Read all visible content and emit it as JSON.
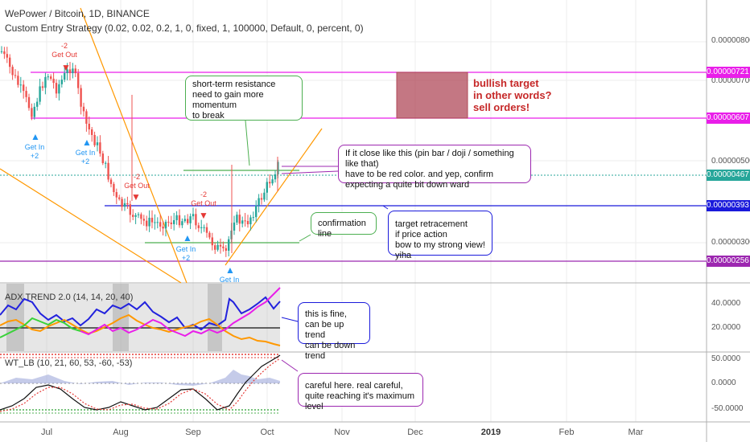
{
  "header": {
    "title": "WePower / Bitcoin, 1D, BINANCE",
    "strategy": "Custom Entry Strategy (0.02, 0.02, 0.2, 1, 0, fixed, 1, 100000, Default, 0, percent, 0)"
  },
  "price_axis": {
    "ticks": [
      "0.00000800",
      "0.00000700",
      "0.00000500",
      "0.00000300"
    ],
    "labels": [
      {
        "text": "0.00000721",
        "color": "#e91ee9"
      },
      {
        "text": "0.00000607",
        "color": "#e91ee9"
      },
      {
        "text": "0.00000467",
        "color": "#26a69a"
      },
      {
        "text": "0.00000393",
        "color": "#1a1adb"
      },
      {
        "text": "0.00000256",
        "color": "#9c27b0"
      }
    ]
  },
  "adx_pane": {
    "title": "ADX TREND 2.0 (14, 14, 20, 40)",
    "ticks": [
      "40.0000",
      "20.0000"
    ]
  },
  "wt_pane": {
    "title": "WT_LB (10, 21, 60, 53, -60, -53)",
    "ticks": [
      "50.0000",
      "0.0000",
      "-50.0000"
    ]
  },
  "time_axis": [
    "Jul",
    "Aug",
    "Sep",
    "Oct",
    "Nov",
    "Dec",
    "2019",
    "Feb",
    "Mar"
  ],
  "signals": [
    {
      "text": "-2\nGet Out",
      "type": "exit"
    },
    {
      "text": "Get In\n+2",
      "type": "entry"
    },
    {
      "text": "Get In\n+2",
      "type": "entry"
    },
    {
      "text": "-2\nGet Out",
      "type": "exit"
    },
    {
      "text": "-2\nGet Out",
      "type": "exit"
    },
    {
      "text": "Get In\n+2",
      "type": "entry"
    },
    {
      "text": "Get In",
      "type": "entry"
    }
  ],
  "annotations": {
    "target": "bullish target\nin other words?\nsell orders!",
    "resistance": "short-term resistance\nneed to gain more momentum\nto break",
    "close": "If it close like this (pin bar / doji / something like that)\nhave to be red color. and yep, confirm\nexpecting a quite bit down ward",
    "confirmation": "confirmation line",
    "retracement": "target retracement\nif price action\nbow to my strong view! yiha",
    "adx_note": "this is fine,\ncan be up trend\ncan be down trend",
    "wt_note": "careful here. real careful,\nquite reaching it's maximum level"
  },
  "colors": {
    "up": "#26a69a",
    "down": "#ef5350",
    "magenta": "#e91ee9",
    "blue": "#1a1adb",
    "green": "#4caf50",
    "orange": "#ff9800",
    "purple": "#9c27b0",
    "entry": "#2196f3",
    "exit": "#e53935"
  }
}
